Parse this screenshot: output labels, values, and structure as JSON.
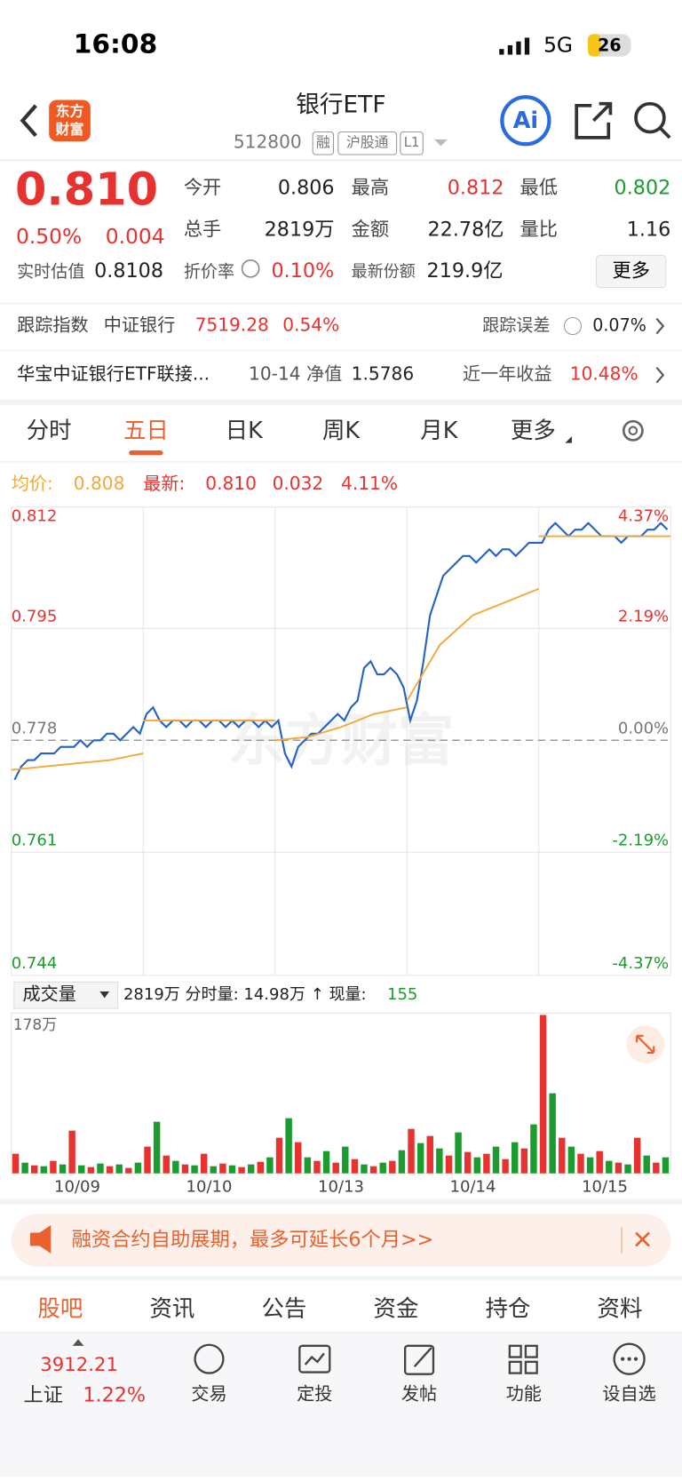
{
  "status": {
    "time": "16:08",
    "network": "5G",
    "battery": "26"
  },
  "header": {
    "logo": [
      "东方",
      "财富"
    ],
    "title": "银行ETF",
    "code": "512800",
    "tags": [
      "融",
      "沪股通",
      "L1"
    ],
    "ai": "Ai"
  },
  "quote": {
    "price": "0.810",
    "change_pct": "0.50%",
    "change": "0.004",
    "fields": [
      {
        "label": "今开",
        "value": "0.806"
      },
      {
        "label": "最高",
        "value": "0.812"
      },
      {
        "label": "最低",
        "value": "0.802"
      },
      {
        "label": "总手",
        "value": "2819万"
      },
      {
        "label": "金额",
        "value": "22.78亿"
      },
      {
        "label": "量比",
        "value": "1.16"
      },
      {
        "label": "实时估值",
        "value": "0.8108"
      },
      {
        "label": "折价率",
        "value": "0.10%"
      },
      {
        "label": "最新份额",
        "value": "219.9亿"
      }
    ],
    "more": "更多"
  },
  "tracking": {
    "label": "跟踪指数",
    "index": "中证银行",
    "value": "7519.28",
    "pct": "0.54%",
    "error_label": "跟踪误差",
    "error": "0.07%"
  },
  "fund": {
    "name": "华宝中证银行ETF联接...",
    "date_nav": "10-14 净值",
    "nav": "1.5786",
    "year_label": "近一年收益",
    "year": "10.48%"
  },
  "tabs": {
    "items": [
      "分时",
      "五日",
      "日K",
      "周K",
      "月K",
      "更多"
    ],
    "active": 1
  },
  "intraday": {
    "type": "line",
    "avg_label": "均价:",
    "avg_value": "0.808",
    "latest_label": "最新:",
    "latest": "0.810",
    "change": "0.032",
    "pct": "4.11%",
    "ylim": [
      0.744,
      0.812
    ],
    "yticks": [
      0.812,
      0.795,
      0.778,
      0.761,
      0.744
    ],
    "y2ticks": [
      "4.37%",
      "2.19%",
      "0.00%",
      "-2.19%",
      "-4.37%"
    ],
    "days": [
      "10/09",
      "10/10",
      "10/13",
      "10/14",
      "10/15"
    ],
    "price": [
      0.772,
      0.774,
      0.775,
      0.775,
      0.776,
      0.776,
      0.776,
      0.777,
      0.777,
      0.777,
      0.778,
      0.777,
      0.778,
      0.778,
      0.779,
      0.779,
      0.778,
      0.779,
      0.78,
      0.779,
      0.782,
      0.783,
      0.781,
      0.78,
      0.781,
      0.781,
      0.78,
      0.781,
      0.781,
      0.78,
      0.781,
      0.781,
      0.78,
      0.781,
      0.78,
      0.781,
      0.781,
      0.78,
      0.781,
      0.78,
      0.781,
      0.776,
      0.774,
      0.777,
      0.778,
      0.779,
      0.779,
      0.78,
      0.781,
      0.782,
      0.781,
      0.783,
      0.784,
      0.789,
      0.79,
      0.788,
      0.788,
      0.789,
      0.788,
      0.786,
      0.781,
      0.784,
      0.79,
      0.797,
      0.8,
      0.803,
      0.804,
      0.805,
      0.806,
      0.806,
      0.805,
      0.806,
      0.807,
      0.806,
      0.807,
      0.807,
      0.806,
      0.807,
      0.808,
      0.808,
      0.808,
      0.81,
      0.811,
      0.81,
      0.809,
      0.81,
      0.81,
      0.811,
      0.81,
      0.809,
      0.809,
      0.809,
      0.808,
      0.809,
      0.809,
      0.809,
      0.81,
      0.81,
      0.811,
      0.81
    ],
    "avg": [
      0.7735,
      0.774,
      0.7745,
      0.775,
      0.776,
      0.781,
      0.781,
      0.781,
      0.781,
      0.781,
      0.778,
      0.7785,
      0.78,
      0.782,
      0.783,
      0.784,
      0.7925,
      0.797,
      0.799,
      0.801,
      0.809,
      0.809,
      0.809,
      0.809,
      0.809
    ],
    "price_color": "#2462c2",
    "avg_color": "#f2a83a"
  },
  "volume": {
    "label": "成交量",
    "info": "2819万 分时量: 14.98万 ↑ 现量:",
    "current": "155",
    "max": 178,
    "max_label": "178万",
    "colors": [
      "#e8322f",
      "#1a9c2e"
    ],
    "values": [
      22,
      12,
      9,
      8,
      14,
      10,
      48,
      9,
      7,
      11,
      8,
      10,
      6,
      12,
      30,
      58,
      20,
      14,
      10,
      9,
      22,
      8,
      11,
      9,
      7,
      10,
      13,
      18,
      40,
      62,
      35,
      18,
      14,
      25,
      12,
      30,
      16,
      10,
      8,
      12,
      14,
      26,
      50,
      34,
      42,
      28,
      20,
      46,
      24,
      18,
      22,
      30,
      16,
      35,
      28,
      55,
      178,
      90,
      40,
      30,
      22,
      18,
      25,
      14,
      12,
      10,
      40,
      20,
      12,
      18
    ]
  },
  "banner": "融资合约自助展期，最多可延长6个月>>",
  "bottom_tabs": {
    "items": [
      "股吧",
      "资讯",
      "公告",
      "资金",
      "持仓",
      "资料"
    ],
    "active": 0
  },
  "footer": {
    "index_value": "3912.21",
    "index_name": "上证",
    "index_pct": "1.22%",
    "nav": [
      "交易",
      "定投",
      "发帖",
      "功能",
      "设自选"
    ]
  }
}
